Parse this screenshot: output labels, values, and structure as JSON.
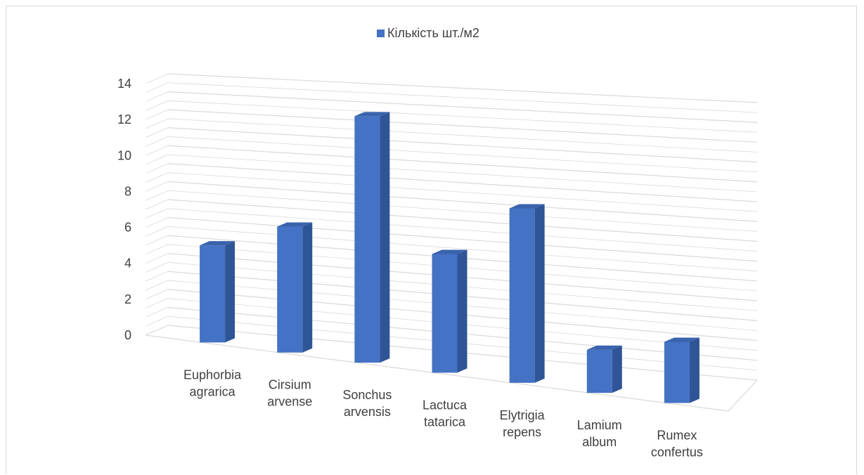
{
  "chart_data": {
    "type": "bar",
    "style": "3d-column",
    "categories": [
      [
        "Euphorbia",
        "agrarica"
      ],
      [
        "Cirsium",
        "arvense"
      ],
      [
        "Sonchus",
        "arvensis"
      ],
      [
        "Lactuca",
        "tatarica"
      ],
      [
        "Elytrigia",
        "repens"
      ],
      [
        "Lamium",
        "album"
      ],
      [
        "Rumex",
        "confertus"
      ]
    ],
    "series": [
      {
        "name": "Кількість шт./м2",
        "values": [
          5.4,
          7.0,
          13.7,
          6.6,
          9.7,
          2.4,
          3.4
        ],
        "color": "#4472c4"
      }
    ],
    "ylim": [
      0,
      14
    ],
    "yticks": [
      "0",
      "2",
      "4",
      "6",
      "8",
      "10",
      "12",
      "14"
    ],
    "legend_position": "top",
    "grid": true,
    "colors": {
      "bar_front": "#4472c4",
      "bar_side": "#2f5597",
      "bar_top": "#3a63ad",
      "grid": "#d9d9d9",
      "text": "#404040"
    }
  }
}
